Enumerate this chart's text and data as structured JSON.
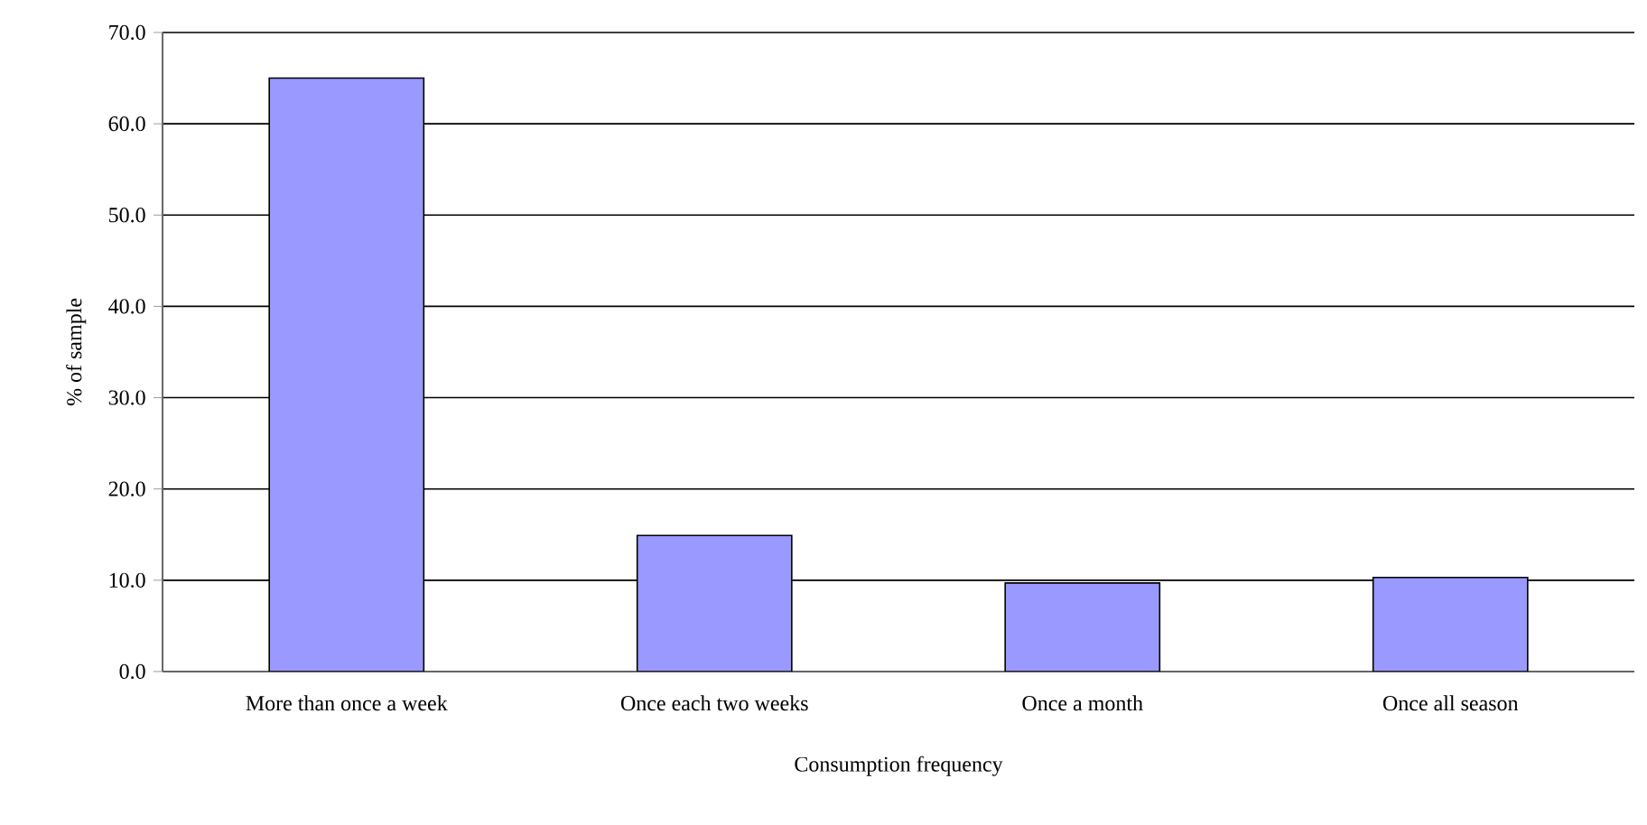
{
  "chart_data": {
    "type": "bar",
    "xlabel": "Consumption frequency",
    "ylabel": "% of sample",
    "categories": [
      "More than once a week",
      "Once each two weeks",
      "Once a month",
      "Once all season"
    ],
    "values": [
      65.0,
      14.9,
      9.7,
      10.3
    ],
    "color": "#9999ff",
    "ylim": [
      0,
      70
    ],
    "yticks": [
      {
        "value": 0,
        "label": "0.0"
      },
      {
        "value": 10,
        "label": "10.0"
      },
      {
        "value": 20,
        "label": "20.0"
      },
      {
        "value": 30,
        "label": "30.0"
      },
      {
        "value": 40,
        "label": "40.0"
      },
      {
        "value": 50,
        "label": "50.0"
      },
      {
        "value": 60,
        "label": "60.0"
      },
      {
        "value": 70,
        "label": "70.0"
      }
    ],
    "grid": "y"
  }
}
